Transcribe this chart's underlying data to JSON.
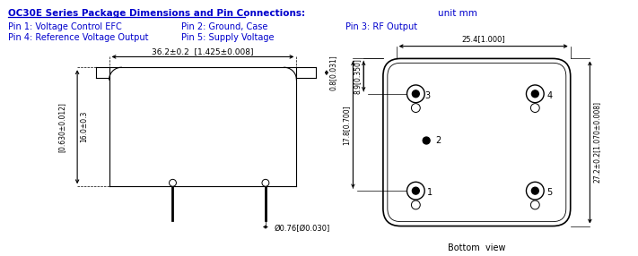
{
  "title": "OC30E Series Package Dimensions and Pin Connections",
  "unit_text": "unit mm",
  "pin1": "Pin 1: Voltage Control EFC",
  "pin2": "Pin 2: Ground, Case",
  "pin3": "Pin 3: RF Output",
  "pin4": "Pin 4: Reference Voltage Output",
  "pin5": "Pin 5: Supply Voltage",
  "dim_width": "36.2±0.2  [1.425±0.008]",
  "dim_height": "16.0±0.3",
  "dim_height_in": "[0.630±0.012]",
  "dim_flange": "0.8[0.031]",
  "dim_pin": "Ø0.76[Ø0.030]",
  "dim_pkg_width": "25.4[1.000]",
  "dim_pkg_height": "27.2±0.2[1.070±0.008]",
  "dim_top": "8.9[0.350]",
  "dim_mid": "17.8[0.700]",
  "bg_color": "#FFFFFF",
  "line_color": "#000000",
  "text_color": "#0000CC",
  "dim_color": "#000000"
}
